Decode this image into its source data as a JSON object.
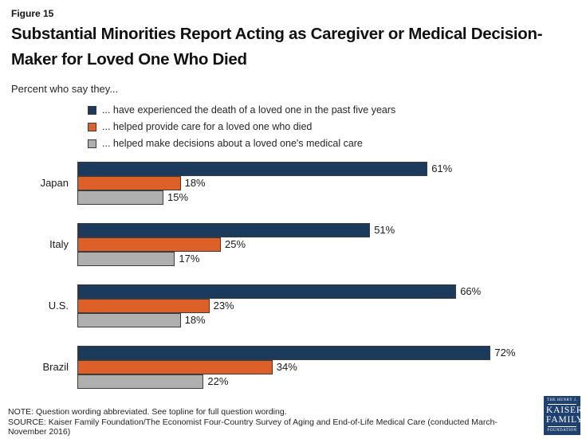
{
  "figure_label": "Figure 15",
  "title": "Substantial Minorities Report Acting as Caregiver or Medical Decision-Maker for Loved One Who Died",
  "subtitle": "Percent who say they...",
  "legend": [
    {
      "label": "... have experienced the death of a loved one in the past five years",
      "color": "#1C3A5C"
    },
    {
      "label": "... helped provide care for a loved one who died",
      "color": "#DC6027"
    },
    {
      "label": "... helped make decisions about a loved one's medical care",
      "color": "#AFAFAF"
    }
  ],
  "chart_data": {
    "type": "bar",
    "orientation": "horizontal",
    "categories": [
      "Japan",
      "Italy",
      "U.S.",
      "Brazil"
    ],
    "series": [
      {
        "name": "... have experienced the death of a loved one in the past five years",
        "color": "#1C3A5C",
        "values": [
          61,
          51,
          66,
          72
        ]
      },
      {
        "name": "... helped provide care for a loved one who died",
        "color": "#DC6027",
        "values": [
          18,
          25,
          23,
          34
        ]
      },
      {
        "name": "... helped make decisions about a loved one's medical care",
        "color": "#AFAFAF",
        "values": [
          15,
          17,
          18,
          22
        ]
      }
    ],
    "value_suffix": "%",
    "xlim": [
      0,
      100
    ],
    "grid": false,
    "legend_position": "top-left",
    "data_labels": true
  },
  "footer": {
    "note": "NOTE: Question wording abbreviated. See topline for full question wording.",
    "source": "SOURCE: Kaiser Family Foundation/The Economist Four-Country Survey of Aging and End-of-Life Medical Care (conducted March-November 2016)"
  },
  "logo": {
    "line1": "THE HENRY J.",
    "line2": "KAISER",
    "line3": "FAMILY",
    "line4": "FOUNDATION",
    "bg_color": "#1F416F"
  }
}
